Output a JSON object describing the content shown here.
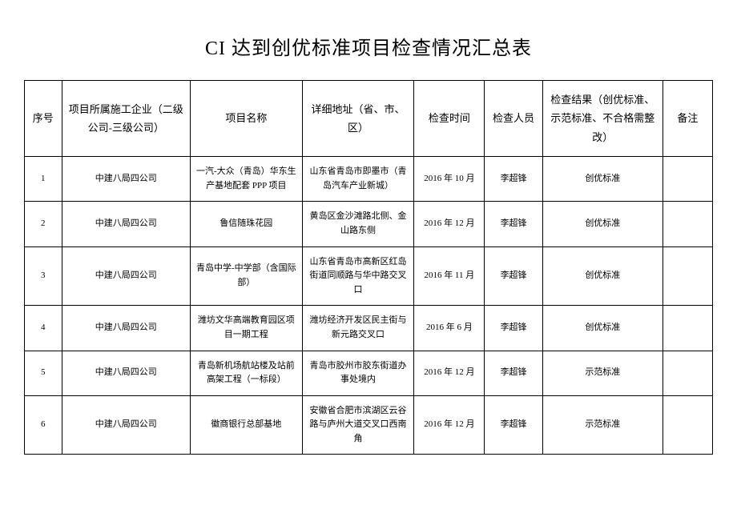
{
  "title": "CI 达到创优标准项目检查情况汇总表",
  "headers": {
    "seq": "序号",
    "company": "项目所属施工企业（二级公司-三级公司）",
    "project": "项目名称",
    "address": "详细地址（省、市、区）",
    "time": "检查时间",
    "inspector": "检查人员",
    "result": "检查结果（创优标准、示范标准、不合格需整改）",
    "remark": "备注"
  },
  "rows": [
    {
      "seq": "1",
      "company": "中建八局四公司",
      "project": "一汽-大众（青岛）华东生产基地配套 PPP 项目",
      "address": "山东省青岛市即墨市（青岛汽车产业新城）",
      "time": "2016 年 10 月",
      "inspector": "李超锋",
      "result": "创优标准",
      "remark": ""
    },
    {
      "seq": "2",
      "company": "中建八局四公司",
      "project": "鲁信随珠花园",
      "address": "黄岛区金沙滩路北侧、金山路东侧",
      "time": "2016 年 12 月",
      "inspector": "李超锋",
      "result": "创优标准",
      "remark": ""
    },
    {
      "seq": "3",
      "company": "中建八局四公司",
      "project": "青岛中学-中学部（含国际部）",
      "address": "山东省青岛市高新区红岛街道同顺路与华中路交叉口",
      "time": "2016 年 11 月",
      "inspector": "李超锋",
      "result": "创优标准",
      "remark": ""
    },
    {
      "seq": "4",
      "company": "中建八局四公司",
      "project": "潍坊文华高端教育园区项目一期工程",
      "address": "潍坊经济开发区民主街与新元路交叉口",
      "time": "2016 年 6 月",
      "inspector": "李超锋",
      "result": "创优标准",
      "remark": ""
    },
    {
      "seq": "5",
      "company": "中建八局四公司",
      "project": "青岛新机场航站楼及站前高架工程（一标段）",
      "address": "青岛市胶州市胶东街道办事处境内",
      "time": "2016 年 12 月",
      "inspector": "李超锋",
      "result": "示范标准",
      "remark": ""
    },
    {
      "seq": "6",
      "company": "中建八局四公司",
      "project": "徽商银行总部基地",
      "address": "安徽省合肥市滨湖区云谷路与庐州大道交叉口西南角",
      "time": "2016 年 12 月",
      "inspector": "李超锋",
      "result": "示范标准",
      "remark": ""
    }
  ]
}
